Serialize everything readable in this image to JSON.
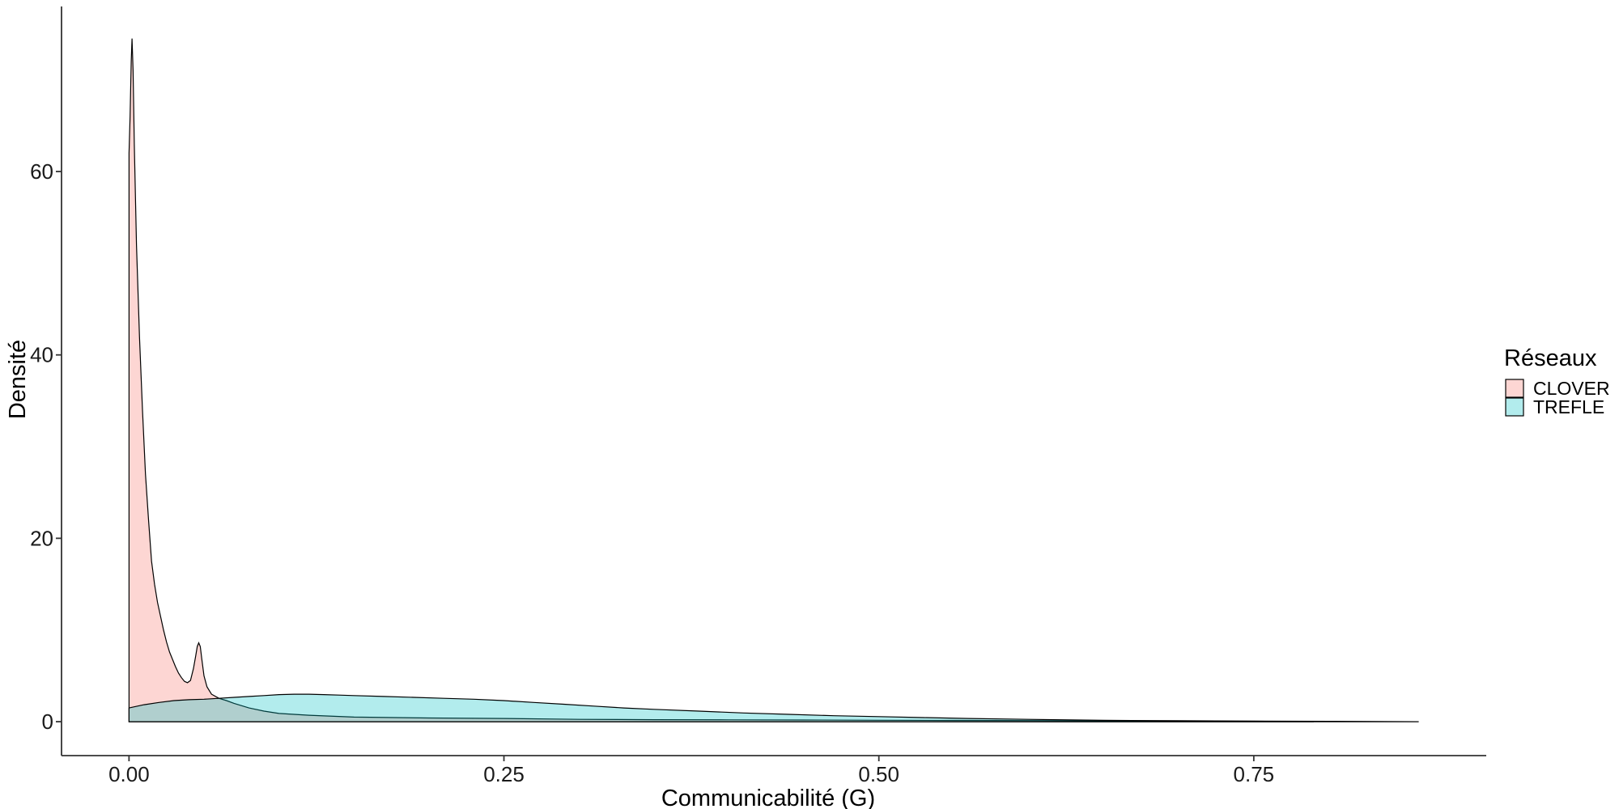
{
  "chart_data": {
    "type": "area",
    "subtype": "density",
    "title": "",
    "xlabel": "Communicabilité (G)",
    "ylabel": "Densité",
    "xlim": [
      -0.045,
      0.905
    ],
    "ylim": [
      -3.7,
      78
    ],
    "x_ticks": [
      0.0,
      0.25,
      0.5,
      0.75
    ],
    "x_tick_labels": [
      "0.00",
      "0.25",
      "0.50",
      "0.75"
    ],
    "y_ticks": [
      0,
      20,
      40,
      60
    ],
    "y_tick_labels": [
      "0",
      "20",
      "40",
      "60"
    ],
    "grid": false,
    "legend": {
      "title": "Réseaux",
      "position": "right"
    },
    "series": [
      {
        "name": "CLOVER",
        "color": "#F8766D",
        "points": [
          [
            0.0,
            62
          ],
          [
            0.0007,
            66
          ],
          [
            0.0015,
            72
          ],
          [
            0.002,
            74.5
          ],
          [
            0.0027,
            71
          ],
          [
            0.0035,
            63
          ],
          [
            0.005,
            52
          ],
          [
            0.007,
            42
          ],
          [
            0.009,
            34
          ],
          [
            0.011,
            27
          ],
          [
            0.013,
            22
          ],
          [
            0.015,
            17.5
          ],
          [
            0.017,
            15
          ],
          [
            0.019,
            13
          ],
          [
            0.021,
            11.5
          ],
          [
            0.023,
            10
          ],
          [
            0.025,
            8.7
          ],
          [
            0.027,
            7.6
          ],
          [
            0.029,
            6.8
          ],
          [
            0.031,
            6.0
          ],
          [
            0.033,
            5.3
          ],
          [
            0.035,
            4.8
          ],
          [
            0.037,
            4.4
          ],
          [
            0.039,
            4.25
          ],
          [
            0.041,
            4.5
          ],
          [
            0.043,
            5.8
          ],
          [
            0.0445,
            7.2
          ],
          [
            0.0455,
            8.2
          ],
          [
            0.0465,
            8.6
          ],
          [
            0.0475,
            8.2
          ],
          [
            0.0485,
            6.9
          ],
          [
            0.05,
            5.0
          ],
          [
            0.052,
            3.8
          ],
          [
            0.055,
            3.0
          ],
          [
            0.06,
            2.55
          ],
          [
            0.065,
            2.3
          ],
          [
            0.07,
            2.0
          ],
          [
            0.08,
            1.5
          ],
          [
            0.09,
            1.15
          ],
          [
            0.1,
            0.9
          ],
          [
            0.12,
            0.7
          ],
          [
            0.15,
            0.5
          ],
          [
            0.2,
            0.4
          ],
          [
            0.25,
            0.35
          ],
          [
            0.3,
            0.25
          ],
          [
            0.35,
            0.22
          ],
          [
            0.4,
            0.2
          ],
          [
            0.45,
            0.18
          ],
          [
            0.5,
            0.16
          ],
          [
            0.55,
            0.14
          ],
          [
            0.6,
            0.12
          ],
          [
            0.65,
            0.1
          ],
          [
            0.7,
            0.08
          ],
          [
            0.75,
            0.05
          ],
          [
            0.79,
            0.0
          ]
        ]
      },
      {
        "name": "TREFLE",
        "color": "#00BFC4",
        "points": [
          [
            0.0,
            1.5
          ],
          [
            0.01,
            1.85
          ],
          [
            0.02,
            2.1
          ],
          [
            0.03,
            2.3
          ],
          [
            0.04,
            2.4
          ],
          [
            0.05,
            2.45
          ],
          [
            0.06,
            2.55
          ],
          [
            0.07,
            2.65
          ],
          [
            0.08,
            2.75
          ],
          [
            0.09,
            2.85
          ],
          [
            0.1,
            2.95
          ],
          [
            0.11,
            3.0
          ],
          [
            0.12,
            3.0
          ],
          [
            0.13,
            2.95
          ],
          [
            0.14,
            2.9
          ],
          [
            0.15,
            2.85
          ],
          [
            0.17,
            2.75
          ],
          [
            0.19,
            2.65
          ],
          [
            0.21,
            2.55
          ],
          [
            0.23,
            2.45
          ],
          [
            0.25,
            2.3
          ],
          [
            0.27,
            2.1
          ],
          [
            0.29,
            1.9
          ],
          [
            0.31,
            1.7
          ],
          [
            0.33,
            1.5
          ],
          [
            0.35,
            1.35
          ],
          [
            0.38,
            1.15
          ],
          [
            0.41,
            0.95
          ],
          [
            0.44,
            0.8
          ],
          [
            0.47,
            0.65
          ],
          [
            0.5,
            0.55
          ],
          [
            0.53,
            0.45
          ],
          [
            0.56,
            0.35
          ],
          [
            0.6,
            0.25
          ],
          [
            0.65,
            0.15
          ],
          [
            0.7,
            0.1
          ],
          [
            0.75,
            0.07
          ],
          [
            0.8,
            0.04
          ],
          [
            0.86,
            0.0
          ]
        ]
      }
    ]
  }
}
